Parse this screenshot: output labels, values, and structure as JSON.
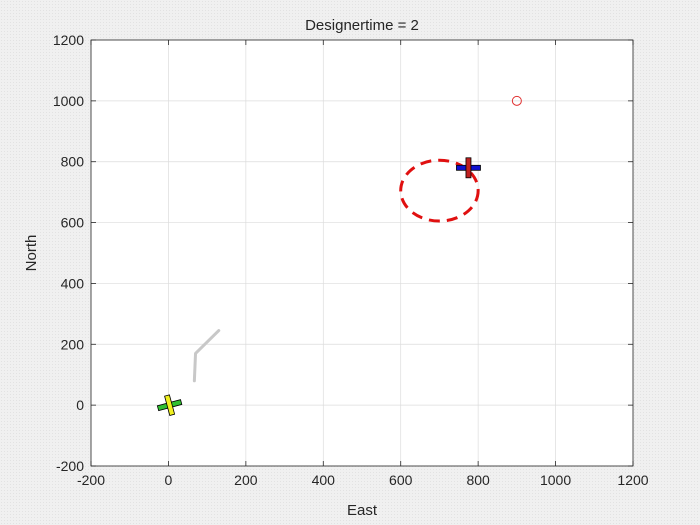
{
  "chart_data": {
    "type": "scatter",
    "title": "Designertime = 2",
    "xlabel": "East",
    "ylabel": "North",
    "xlim": [
      -200,
      1200
    ],
    "ylim": [
      -200,
      1200
    ],
    "xticks": [
      -200,
      0,
      200,
      400,
      600,
      800,
      1000,
      1200
    ],
    "yticks": [
      -200,
      0,
      200,
      400,
      600,
      800,
      1000,
      1200
    ],
    "grid": true,
    "elements": {
      "trail": {
        "color": "#c8c8c8",
        "points": [
          [
            67,
            80
          ],
          [
            70,
            170
          ],
          [
            130,
            245
          ]
        ]
      },
      "target_marker": {
        "color": "#e03030",
        "x": 900,
        "y": 1000
      },
      "dashed_ellipse": {
        "color": "#e01010",
        "cx": 700,
        "cy": 705,
        "rx": 100,
        "ry": 100
      },
      "aircraft_blue_red": {
        "x": 775,
        "y": 780,
        "wing_color": "#1010d0",
        "body_color": "#c02020",
        "heading_deg": 0
      },
      "aircraft_green_yellow": {
        "x": 3,
        "y": 0,
        "wing_color": "#30c030",
        "body_color": "#f0f020",
        "heading_deg": -15
      }
    }
  }
}
